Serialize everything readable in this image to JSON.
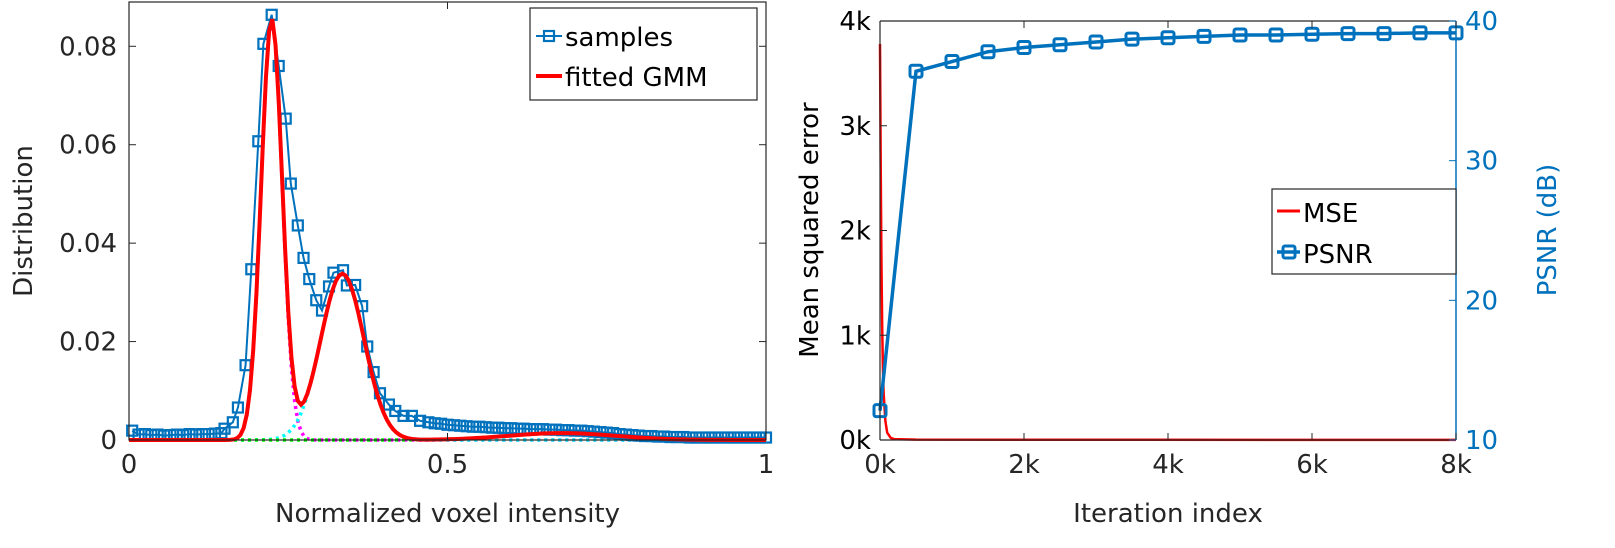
{
  "chart_data": [
    {
      "type": "line",
      "title": "",
      "xlabel": "Normalized voxel intensity",
      "ylabel": "Distribution",
      "xlim": [
        0,
        1
      ],
      "ylim": [
        0,
        0.089
      ],
      "xticks": [
        0,
        0.5,
        1
      ],
      "xtick_labels": [
        "0",
        "0.5",
        "1"
      ],
      "yticks": [
        0,
        0.02,
        0.04,
        0.06,
        0.08
      ],
      "ytick_labels": [
        "0",
        "0.02",
        "0.04",
        "0.06",
        "0.08"
      ],
      "grid": false,
      "legend": {
        "placement": "top-right",
        "entries": [
          "samples",
          "fitted GMM"
        ]
      },
      "series": [
        {
          "name": "samples",
          "color": "#0072BD",
          "marker": "square",
          "x": [
            0.005,
            0.015,
            0.025,
            0.035,
            0.045,
            0.055,
            0.065,
            0.075,
            0.085,
            0.095,
            0.105,
            0.115,
            0.125,
            0.135,
            0.145,
            0.15,
            0.163,
            0.171,
            0.183,
            0.192,
            0.203,
            0.211,
            0.224,
            0.235,
            0.246,
            0.254,
            0.265,
            0.274,
            0.283,
            0.294,
            0.303,
            0.314,
            0.321,
            0.336,
            0.342,
            0.355,
            0.366,
            0.374,
            0.384,
            0.394,
            0.408,
            0.418,
            0.431,
            0.444,
            0.457,
            0.47,
            0.48,
            0.49,
            0.5,
            0.51,
            0.52,
            0.53,
            0.54,
            0.55,
            0.56,
            0.57,
            0.58,
            0.59,
            0.6,
            0.61,
            0.62,
            0.63,
            0.64,
            0.65,
            0.66,
            0.67,
            0.68,
            0.69,
            0.7,
            0.71,
            0.72,
            0.73,
            0.74,
            0.75,
            0.76,
            0.77,
            0.78,
            0.79,
            0.8,
            0.81,
            0.82,
            0.83,
            0.84,
            0.85,
            0.86,
            0.87,
            0.88,
            0.89,
            0.9,
            0.91,
            0.92,
            0.93,
            0.94,
            0.95,
            0.96,
            0.97,
            0.98,
            0.99,
            1.0
          ],
          "y": [
            0.0019,
            0.0011,
            0.0012,
            0.001,
            0.0011,
            0.0009,
            0.001,
            0.0011,
            0.001,
            0.0012,
            0.0011,
            0.0012,
            0.0012,
            0.0013,
            0.0014,
            0.0023,
            0.0036,
            0.0066,
            0.0152,
            0.0347,
            0.0607,
            0.0805,
            0.0864,
            0.076,
            0.0653,
            0.0521,
            0.0436,
            0.037,
            0.0327,
            0.0284,
            0.0263,
            0.0312,
            0.034,
            0.0345,
            0.0314,
            0.0315,
            0.0272,
            0.019,
            0.0138,
            0.0095,
            0.0072,
            0.0059,
            0.0049,
            0.0049,
            0.0039,
            0.0036,
            0.0034,
            0.0033,
            0.0031,
            0.003,
            0.0029,
            0.0028,
            0.0027,
            0.0027,
            0.0026,
            0.0025,
            0.0025,
            0.0024,
            0.0024,
            0.0023,
            0.0023,
            0.0022,
            0.0022,
            0.0022,
            0.0021,
            0.0021,
            0.002,
            0.002,
            0.0019,
            0.0019,
            0.0018,
            0.0017,
            0.0016,
            0.0015,
            0.0014,
            0.0012,
            0.0011,
            0.001,
            0.0009,
            0.0008,
            0.0008,
            0.0007,
            0.0007,
            0.0006,
            0.0006,
            0.0006,
            0.0005,
            0.0005,
            0.0005,
            0.0005,
            0.0005,
            0.0005,
            0.0005,
            0.0005,
            0.0005,
            0.0005,
            0.0005,
            0.0005,
            0.0005
          ]
        },
        {
          "name": "fitted GMM",
          "color": "#FF0000",
          "kind": "gaussian-mixture-sum",
          "components": [
            {
              "mu": 0.224,
              "sigma": 0.0165,
              "peak": 0.0855,
              "color": "#FF00FF"
            },
            {
              "mu": 0.335,
              "sigma": 0.034,
              "peak": 0.0338,
              "color": "#00FFFF"
            },
            {
              "mu": 0.68,
              "sigma": 0.085,
              "peak": 0.0014,
              "color": "#00FF00"
            }
          ]
        }
      ]
    },
    {
      "type": "line",
      "title": "",
      "xlabel": "Iteration index",
      "ylabel": "Mean squared error",
      "ylabel_right": "PSNR (dB)",
      "xlim": [
        0,
        8000
      ],
      "ylim": [
        0,
        4000
      ],
      "ylim_right": [
        10,
        40
      ],
      "xticks": [
        0,
        2000,
        4000,
        6000,
        8000
      ],
      "xtick_labels": [
        "0k",
        "2k",
        "4k",
        "6k",
        "8k"
      ],
      "yticks": [
        0,
        1000,
        2000,
        3000,
        4000
      ],
      "ytick_labels": [
        "0k",
        "1k",
        "2k",
        "3k",
        "4k"
      ],
      "yticks_right": [
        10,
        20,
        30,
        40
      ],
      "ytick_labels_right": [
        "10",
        "20",
        "30",
        "40"
      ],
      "grid": false,
      "legend": {
        "placement": "center-right",
        "entries": [
          "MSE",
          "PSNR"
        ]
      },
      "series": [
        {
          "name": "MSE",
          "color": "#FF0000",
          "axis": "left",
          "x": [
            0,
            10,
            20,
            30,
            40,
            50,
            75,
            100,
            150,
            200,
            500,
            8000
          ],
          "y": [
            3780,
            2600,
            1700,
            1100,
            700,
            450,
            180,
            70,
            20,
            8,
            3,
            1
          ]
        },
        {
          "name": "PSNR",
          "color": "#0072BD",
          "axis": "right",
          "marker": "square",
          "x": [
            0,
            500,
            1000,
            1500,
            2000,
            2500,
            3000,
            3500,
            4000,
            4500,
            5000,
            5500,
            6000,
            6500,
            7000,
            7500,
            8000
          ],
          "y": [
            12.1,
            36.4,
            37.1,
            37.8,
            38.1,
            38.3,
            38.5,
            38.7,
            38.8,
            38.9,
            39.0,
            39.0,
            39.05,
            39.1,
            39.1,
            39.15,
            39.15
          ]
        }
      ]
    }
  ]
}
